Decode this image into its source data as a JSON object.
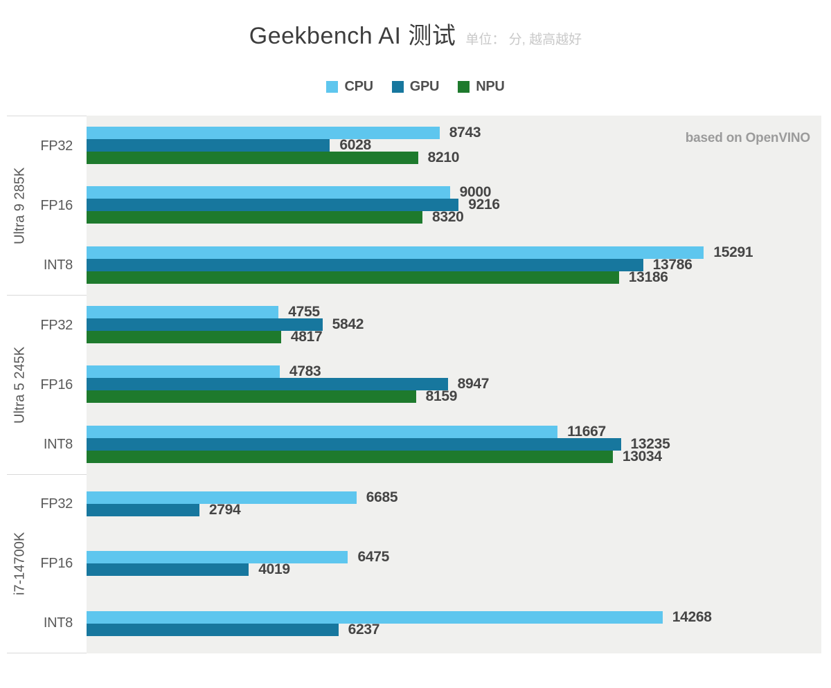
{
  "header": {
    "title": "Geekbench AI 测试",
    "subtitle": "单位： 分, 越高越好"
  },
  "annotation": "based on OpenVINO",
  "chart_data": {
    "type": "bar",
    "orientation": "horizontal",
    "title": "Geekbench AI 测试",
    "unit_note": "单位： 分, 越高越好",
    "annotation": "based on OpenVINO",
    "grid": false,
    "legend_position": "top",
    "xmax": 18200,
    "plot_background": "#f0f0ee",
    "series": [
      {
        "name": "CPU",
        "color": "#5ec6ee"
      },
      {
        "name": "GPU",
        "color": "#17779e"
      },
      {
        "name": "NPU",
        "color": "#1e7a2d"
      }
    ],
    "groups": [
      {
        "label": "Ultra 9 285K",
        "rows": [
          {
            "label": "FP32",
            "values": [
              8743,
              6028,
              8210
            ]
          },
          {
            "label": "FP16",
            "values": [
              9000,
              9216,
              8320
            ]
          },
          {
            "label": "INT8",
            "values": [
              15291,
              13786,
              13186
            ]
          }
        ]
      },
      {
        "label": "Ultra 5 245K",
        "rows": [
          {
            "label": "FP32",
            "values": [
              4755,
              5842,
              4817
            ]
          },
          {
            "label": "FP16",
            "values": [
              4783,
              8947,
              8159
            ]
          },
          {
            "label": "INT8",
            "values": [
              11667,
              13235,
              13034
            ]
          }
        ]
      },
      {
        "label": "i7-14700K",
        "rows": [
          {
            "label": "FP32",
            "values": [
              6685,
              2794,
              null
            ]
          },
          {
            "label": "FP16",
            "values": [
              6475,
              4019,
              null
            ]
          },
          {
            "label": "INT8",
            "values": [
              14268,
              6237,
              null
            ]
          }
        ]
      }
    ]
  }
}
